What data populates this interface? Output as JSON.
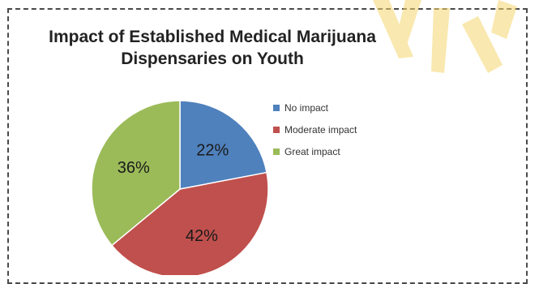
{
  "chart_data": {
    "type": "pie",
    "title": "Impact of Established Medical Marijuana Dispensaries on Youth",
    "title_lines": [
      "Impact of Established Medical Marijuana",
      "Dispensaries on Youth"
    ],
    "categories": [
      "No impact",
      "Moderate impact",
      "Great impact"
    ],
    "values": [
      22,
      42,
      36
    ],
    "data_labels": [
      "22%",
      "42%",
      "36%"
    ],
    "colors": [
      "#4f81bd",
      "#c0504d",
      "#9bbb59"
    ],
    "legend_position": "right"
  },
  "decorations": {
    "border_color": "#4a4a4a",
    "watermark_color": "#f5d76e"
  }
}
